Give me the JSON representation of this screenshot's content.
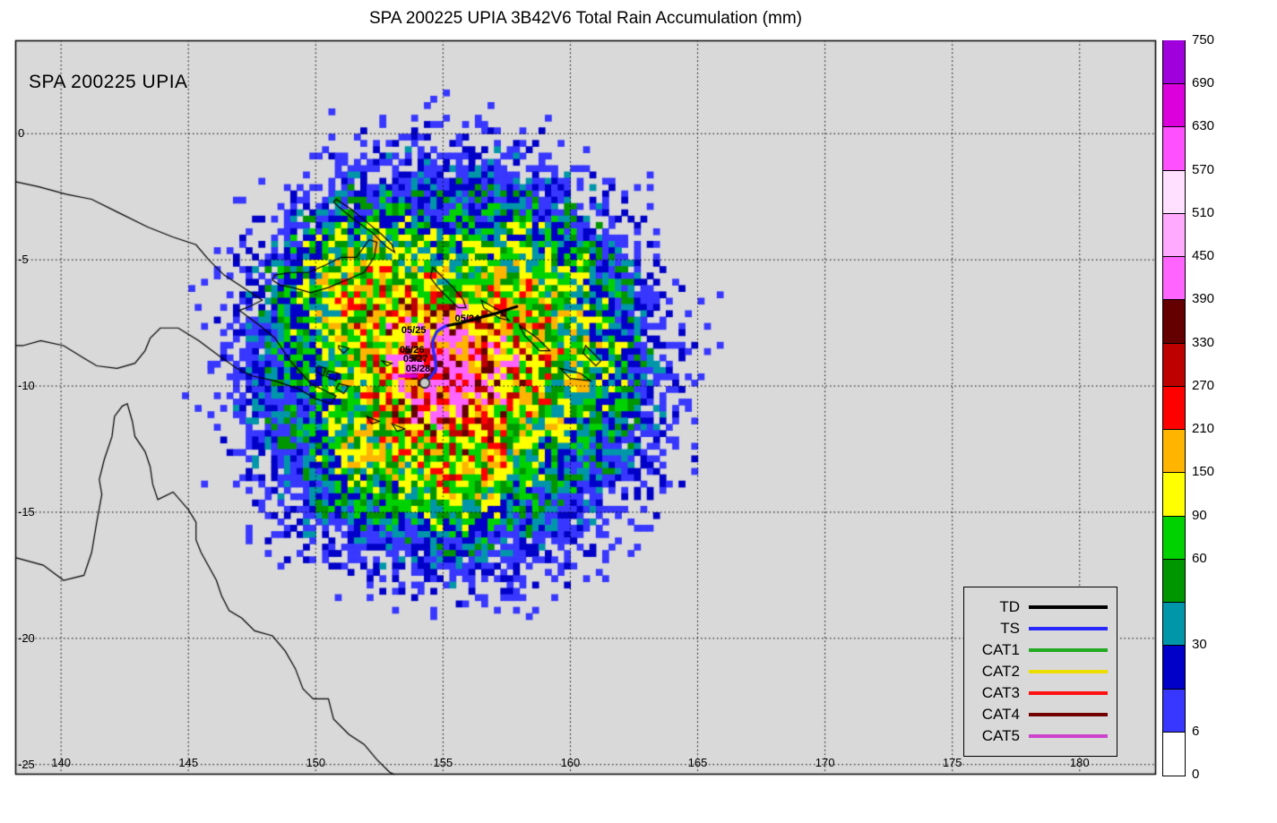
{
  "title": "SPA 200225 UPIA 3B42V6 Total Rain Accumulation (mm)",
  "map_label": "SPA 200225 UPIA",
  "chart_data": {
    "type": "heatmap",
    "subtype": "rain-accumulation-map",
    "units": "mm",
    "projection": {
      "lon_min": 138.2,
      "lon_max": 183.0,
      "lat_min": -25.4,
      "lat_max": 3.7
    },
    "axes": {
      "lon_ticks": [
        {
          "label": "140",
          "value": 140
        },
        {
          "label": "145",
          "value": 145
        },
        {
          "label": "150",
          "value": 150
        },
        {
          "label": "155",
          "value": 155
        },
        {
          "label": "160",
          "value": 160
        },
        {
          "label": "165",
          "value": 165
        },
        {
          "label": "170",
          "value": 170
        },
        {
          "label": "175",
          "value": 175
        },
        {
          "label": "180",
          "value": 180
        }
      ],
      "lat_ticks": [
        {
          "label": "0",
          "value": 0
        },
        {
          "label": "-5",
          "value": -5
        },
        {
          "label": "-10",
          "value": -10
        },
        {
          "label": "-15",
          "value": -15
        },
        {
          "label": "-20",
          "value": -20
        },
        {
          "label": "-25",
          "value": -25
        }
      ],
      "grid_style": "dotted"
    },
    "colorbar": {
      "tick_labels": [
        "0",
        "6",
        "30",
        "60",
        "90",
        "150",
        "210",
        "270",
        "330",
        "390",
        "450",
        "510",
        "570",
        "630",
        "690",
        "750"
      ],
      "levels": [
        0,
        6,
        18,
        30,
        45,
        60,
        90,
        150,
        210,
        270,
        330,
        390,
        450,
        510,
        570,
        630,
        690,
        750
      ],
      "colors": [
        "#ffffff",
        "#3737ff",
        "#0000c8",
        "#0096aa",
        "#009600",
        "#00d200",
        "#ffff00",
        "#ffb400",
        "#ff0000",
        "#be0000",
        "#640000",
        "#ff64ff",
        "#ffaaff",
        "#ffe1ff",
        "#ff50ff",
        "#dc00dc",
        "#a000dc"
      ]
    },
    "background_color": "#d9d9d9",
    "rain_field": {
      "resolution_deg": 0.25,
      "lon_start": 143.5,
      "lat_start": 3.0,
      "nx": 101,
      "ny": 89,
      "seed": 13,
      "center": {
        "lon": 155.3,
        "lat": -9.2
      },
      "extent_radius_deg": 9.3,
      "max_value": 445,
      "blobs": [
        {
          "lon": 155.1,
          "lat": -9.9,
          "amp": 300,
          "sig": 1.35
        },
        {
          "lon": 154.5,
          "lat": -9.4,
          "amp": 230,
          "sig": 0.95
        },
        {
          "lon": 155.8,
          "lat": -8.2,
          "amp": 150,
          "sig": 1.15
        },
        {
          "lon": 157.3,
          "lat": -8.8,
          "amp": 95,
          "sig": 1.3
        },
        {
          "lon": 153.1,
          "lat": -7.4,
          "amp": 85,
          "sig": 1.6
        },
        {
          "lon": 151.6,
          "lat": -5.9,
          "amp": 75,
          "sig": 1.7
        },
        {
          "lon": 155.6,
          "lat": -13.9,
          "amp": 95,
          "sig": 1.1
        },
        {
          "lon": 156.9,
          "lat": -11.9,
          "amp": 60,
          "sig": 1.5
        },
        {
          "lon": 152.1,
          "lat": -12.7,
          "amp": 55,
          "sig": 1.4
        },
        {
          "lon": 158.6,
          "lat": -5.7,
          "amp": 60,
          "sig": 1.5
        },
        {
          "lon": 160.0,
          "lat": -9.0,
          "amp": 55,
          "sig": 1.6
        },
        {
          "lon": 155.3,
          "lat": -9.3,
          "amp": 80,
          "sig": 3.8
        },
        {
          "lon": 155.3,
          "lat": -9.0,
          "amp": 34,
          "sig": 6.2
        }
      ]
    },
    "track": {
      "status_colors": {
        "TD": "#000000",
        "TS": "#2828ff"
      },
      "points": [
        {
          "lon": 157.9,
          "lat": -6.85,
          "status": "TD"
        },
        {
          "lon": 157.15,
          "lat": -7.1,
          "status": "TD"
        },
        {
          "lon": 156.4,
          "lat": -7.3,
          "status": "TD"
        },
        {
          "lon": 155.7,
          "lat": -7.5,
          "status": "TD"
        },
        {
          "lon": 155.1,
          "lat": -7.62,
          "status": "TD"
        },
        {
          "lon": 154.75,
          "lat": -7.85,
          "status": "TS"
        },
        {
          "lon": 154.6,
          "lat": -8.2,
          "status": "TS"
        },
        {
          "lon": 154.62,
          "lat": -8.6,
          "status": "TS"
        },
        {
          "lon": 154.7,
          "lat": -9.0,
          "status": "TS"
        },
        {
          "lon": 154.72,
          "lat": -9.35,
          "status": "TS"
        },
        {
          "lon": 154.5,
          "lat": -9.65,
          "status": "TS"
        },
        {
          "lon": 154.28,
          "lat": -9.88,
          "status": "TS"
        }
      ],
      "labels": [
        {
          "text": "05/24",
          "lon": 155.95,
          "lat": -7.33
        },
        {
          "text": "05/25",
          "lon": 153.85,
          "lat": -7.8
        },
        {
          "text": "05/26",
          "lon": 153.78,
          "lat": -8.57
        },
        {
          "text": "05/27",
          "lon": 153.92,
          "lat": -8.95
        },
        {
          "text": "05/28",
          "lon": 154.02,
          "lat": -9.32
        }
      ],
      "end_marker": {
        "lon": 154.28,
        "lat": -9.88,
        "fill": "#c8c8c8",
        "stroke": "#222222"
      },
      "magenta_mark": {
        "from": {
          "lon": 153.3,
          "lat": -9.6
        },
        "to": {
          "lon": 153.95,
          "lat": -9.6
        },
        "color": "#dd00dd"
      }
    },
    "legend": {
      "entries": [
        {
          "label": "TD",
          "color": "#000000"
        },
        {
          "label": "TS",
          "color": "#2828ff"
        },
        {
          "label": "CAT1",
          "color": "#22aa22"
        },
        {
          "label": "CAT2",
          "color": "#eedd00"
        },
        {
          "label": "CAT3",
          "color": "#ff1111"
        },
        {
          "label": "CAT4",
          "color": "#700000"
        },
        {
          "label": "CAT5",
          "color": "#cc44cc"
        }
      ]
    },
    "coastlines": [
      {
        "name": "australia",
        "closed": false,
        "points": [
          [
            138.2,
            -16.8
          ],
          [
            139.3,
            -17.1
          ],
          [
            140.1,
            -17.7
          ],
          [
            140.9,
            -17.5
          ],
          [
            141.2,
            -16.6
          ],
          [
            141.4,
            -15.4
          ],
          [
            141.6,
            -14.3
          ],
          [
            141.5,
            -13.7
          ],
          [
            141.7,
            -12.9
          ],
          [
            142.0,
            -12.0
          ],
          [
            142.1,
            -11.2
          ],
          [
            142.4,
            -10.8
          ],
          [
            142.6,
            -10.7
          ],
          [
            142.8,
            -11.4
          ],
          [
            142.9,
            -12.0
          ],
          [
            143.3,
            -12.6
          ],
          [
            143.5,
            -13.2
          ],
          [
            143.6,
            -13.9
          ],
          [
            143.8,
            -14.5
          ],
          [
            144.4,
            -14.2
          ],
          [
            145.0,
            -14.9
          ],
          [
            145.3,
            -15.4
          ],
          [
            145.3,
            -16.1
          ],
          [
            145.5,
            -16.6
          ],
          [
            146.1,
            -17.7
          ],
          [
            146.3,
            -18.3
          ],
          [
            146.6,
            -18.9
          ],
          [
            147.1,
            -19.2
          ],
          [
            147.6,
            -19.7
          ],
          [
            148.3,
            -19.9
          ],
          [
            148.8,
            -20.5
          ],
          [
            149.2,
            -21.2
          ],
          [
            149.5,
            -22.0
          ],
          [
            149.9,
            -22.4
          ],
          [
            150.5,
            -22.4
          ],
          [
            150.7,
            -23.2
          ],
          [
            151.3,
            -23.8
          ],
          [
            151.9,
            -24.2
          ],
          [
            152.4,
            -24.8
          ],
          [
            152.9,
            -25.3
          ],
          [
            153.1,
            -25.4
          ]
        ]
      },
      {
        "name": "new-guinea",
        "closed": false,
        "points": [
          [
            138.2,
            -1.9
          ],
          [
            139.1,
            -2.1
          ],
          [
            140.2,
            -2.4
          ],
          [
            141.2,
            -2.6
          ],
          [
            142.2,
            -3.1
          ],
          [
            143.4,
            -3.7
          ],
          [
            144.4,
            -4.1
          ],
          [
            145.3,
            -4.4
          ],
          [
            145.8,
            -5.0
          ],
          [
            146.4,
            -5.6
          ],
          [
            147.0,
            -6.0
          ],
          [
            147.6,
            -6.4
          ],
          [
            147.9,
            -6.6
          ],
          [
            147.3,
            -6.9
          ],
          [
            147.0,
            -7.0
          ],
          [
            147.8,
            -7.6
          ],
          [
            148.4,
            -8.1
          ],
          [
            149.0,
            -9.0
          ],
          [
            149.8,
            -9.9
          ],
          [
            150.4,
            -10.2
          ],
          [
            150.8,
            -10.4
          ],
          [
            150.6,
            -10.7
          ],
          [
            150.0,
            -10.5
          ],
          [
            149.3,
            -10.1
          ],
          [
            148.4,
            -9.8
          ],
          [
            147.5,
            -9.6
          ],
          [
            146.9,
            -9.3
          ],
          [
            146.2,
            -8.8
          ],
          [
            145.4,
            -8.2
          ],
          [
            144.6,
            -7.7
          ],
          [
            143.9,
            -7.7
          ],
          [
            143.5,
            -8.1
          ],
          [
            143.3,
            -8.6
          ],
          [
            142.9,
            -9.1
          ],
          [
            142.2,
            -9.3
          ],
          [
            141.4,
            -9.2
          ],
          [
            140.9,
            -8.9
          ],
          [
            140.1,
            -8.4
          ],
          [
            139.2,
            -8.2
          ],
          [
            138.5,
            -8.4
          ],
          [
            138.2,
            -8.4
          ]
        ]
      },
      {
        "name": "new-britain",
        "closed": true,
        "points": [
          [
            148.4,
            -5.6
          ],
          [
            149.0,
            -5.5
          ],
          [
            149.7,
            -5.5
          ],
          [
            150.4,
            -5.2
          ],
          [
            151.0,
            -4.9
          ],
          [
            151.6,
            -4.9
          ],
          [
            152.1,
            -4.2
          ],
          [
            152.4,
            -4.3
          ],
          [
            152.3,
            -4.9
          ],
          [
            151.9,
            -5.5
          ],
          [
            151.2,
            -5.8
          ],
          [
            150.5,
            -6.1
          ],
          [
            149.8,
            -6.3
          ],
          [
            149.1,
            -6.1
          ],
          [
            148.6,
            -6.0
          ],
          [
            148.3,
            -5.8
          ]
        ]
      },
      {
        "name": "new-ireland",
        "closed": true,
        "points": [
          [
            150.8,
            -2.6
          ],
          [
            151.4,
            -3.0
          ],
          [
            152.0,
            -3.5
          ],
          [
            152.6,
            -4.0
          ],
          [
            153.0,
            -4.4
          ],
          [
            153.1,
            -4.7
          ],
          [
            152.8,
            -4.5
          ],
          [
            152.2,
            -3.9
          ],
          [
            151.5,
            -3.4
          ],
          [
            150.9,
            -2.9
          ],
          [
            150.7,
            -2.7
          ]
        ]
      },
      {
        "name": "bougainville",
        "closed": true,
        "points": [
          [
            154.6,
            -5.3
          ],
          [
            155.0,
            -5.7
          ],
          [
            155.4,
            -6.1
          ],
          [
            155.8,
            -6.6
          ],
          [
            155.9,
            -6.9
          ],
          [
            155.6,
            -6.9
          ],
          [
            155.2,
            -6.5
          ],
          [
            154.8,
            -6.1
          ],
          [
            154.5,
            -5.7
          ]
        ]
      },
      {
        "name": "goodenough-island",
        "closed": true,
        "points": [
          [
            150.1,
            -9.2
          ],
          [
            150.4,
            -9.3
          ],
          [
            150.3,
            -9.6
          ],
          [
            150.0,
            -9.4
          ]
        ]
      },
      {
        "name": "fergusson-island",
        "closed": true,
        "points": [
          [
            150.5,
            -9.4
          ],
          [
            150.9,
            -9.5
          ],
          [
            150.8,
            -9.8
          ],
          [
            150.4,
            -9.6
          ]
        ]
      },
      {
        "name": "normanby-island",
        "closed": true,
        "points": [
          [
            150.9,
            -9.9
          ],
          [
            151.3,
            -10.0
          ],
          [
            151.1,
            -10.3
          ],
          [
            150.8,
            -10.1
          ]
        ]
      },
      {
        "name": "trobriand-island",
        "closed": true,
        "points": [
          [
            150.9,
            -8.4
          ],
          [
            151.3,
            -8.5
          ],
          [
            151.1,
            -8.7
          ],
          [
            150.9,
            -8.5
          ]
        ]
      },
      {
        "name": "woodlark-island",
        "closed": true,
        "points": [
          [
            152.6,
            -9.0
          ],
          [
            153.0,
            -9.1
          ],
          [
            152.8,
            -9.2
          ]
        ]
      },
      {
        "name": "louisiade-1",
        "closed": true,
        "points": [
          [
            152.0,
            -11.2
          ],
          [
            152.5,
            -11.4
          ],
          [
            152.2,
            -11.5
          ]
        ]
      },
      {
        "name": "louisiade-2",
        "closed": true,
        "points": [
          [
            153.0,
            -11.5
          ],
          [
            153.5,
            -11.7
          ],
          [
            153.2,
            -11.8
          ]
        ]
      },
      {
        "name": "choiseul",
        "closed": true,
        "points": [
          [
            156.5,
            -6.6
          ],
          [
            157.2,
            -7.0
          ],
          [
            157.6,
            -7.4
          ],
          [
            157.2,
            -7.3
          ],
          [
            156.6,
            -6.9
          ]
        ]
      },
      {
        "name": "santa-isabel",
        "closed": true,
        "points": [
          [
            158.0,
            -7.6
          ],
          [
            158.7,
            -8.1
          ],
          [
            159.2,
            -8.6
          ],
          [
            158.8,
            -8.6
          ],
          [
            158.2,
            -8.0
          ]
        ]
      },
      {
        "name": "guadalcanal",
        "closed": true,
        "points": [
          [
            159.6,
            -9.3
          ],
          [
            160.4,
            -9.5
          ],
          [
            160.8,
            -9.8
          ],
          [
            160.0,
            -9.7
          ]
        ]
      },
      {
        "name": "malaita",
        "closed": true,
        "points": [
          [
            160.6,
            -8.4
          ],
          [
            161.2,
            -9.0
          ],
          [
            161.0,
            -9.2
          ],
          [
            160.5,
            -8.7
          ]
        ]
      }
    ]
  }
}
